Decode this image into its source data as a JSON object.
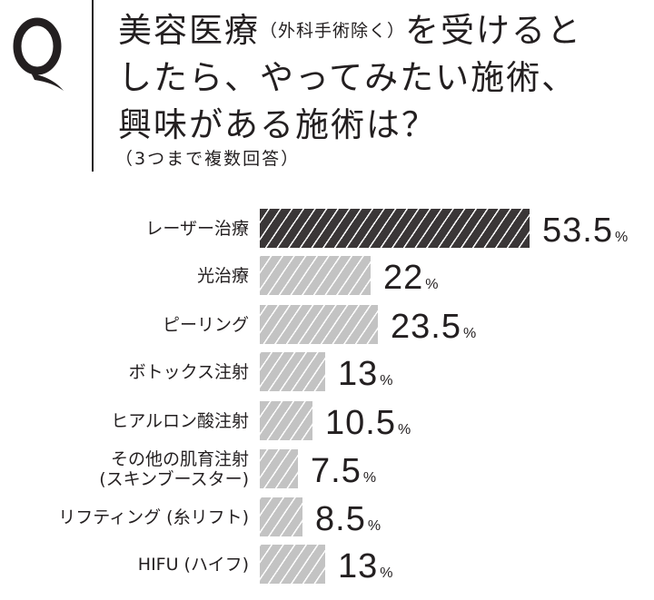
{
  "header": {
    "q_mark": "Q",
    "title_line1_main": "美容医療",
    "title_line1_note": "（外科手術除く）",
    "title_line1_rest": "を受けると",
    "title_line2": "したら、やってみたい施術、",
    "title_line3": "興味がある施術は？",
    "subtitle": "（3つまで複数回答）"
  },
  "chart_data": {
    "type": "bar",
    "orientation": "horizontal",
    "title": "美容医療（外科手術除く）を受けるとしたら、やってみたい施術、興味がある施術は？",
    "subtitle": "（3つまで複数回答）",
    "xlabel": "",
    "ylabel": "",
    "unit": "%",
    "xlim": [
      0,
      60
    ],
    "grid": false,
    "legend": "none",
    "categories": [
      "レーザー治療",
      "光治療",
      "ピーリング",
      "ボトックス注射",
      "ヒアルロン酸注射",
      "その他の肌育注射（スキンブースター）",
      "リフティング（糸リフト）",
      "HIFU（ハイフ）"
    ],
    "values": [
      53.5,
      22,
      23.5,
      13,
      10.5,
      7.5,
      8.5,
      13
    ],
    "highlight_index": 0,
    "colors": {
      "highlight": "#3a3637",
      "normal": "#c3c3c3",
      "stripe": "#ffffff"
    }
  },
  "rows": [
    {
      "label_lines": [
        "レーザー治療"
      ],
      "value": "53.5",
      "unit": "%",
      "style": "dark"
    },
    {
      "label_lines": [
        "光治療"
      ],
      "value": "22",
      "unit": "%",
      "style": "light"
    },
    {
      "label_lines": [
        "ピーリング"
      ],
      "value": "23.5",
      "unit": "%",
      "style": "light"
    },
    {
      "label_lines": [
        "ボトックス注射"
      ],
      "value": "13",
      "unit": "%",
      "style": "light"
    },
    {
      "label_lines": [
        "ヒアルロン酸注射"
      ],
      "value": "10.5",
      "unit": "%",
      "style": "light"
    },
    {
      "label_lines": [
        "その他の肌育注射",
        "(スキンブースター)"
      ],
      "value": "7.5",
      "unit": "%",
      "style": "light"
    },
    {
      "label_lines": [
        "リフティング (糸リフト)"
      ],
      "value": "8.5",
      "unit": "%",
      "style": "light"
    },
    {
      "label_lines": [
        "HIFU (ハイフ)"
      ],
      "value": "13",
      "unit": "%",
      "style": "light"
    }
  ]
}
